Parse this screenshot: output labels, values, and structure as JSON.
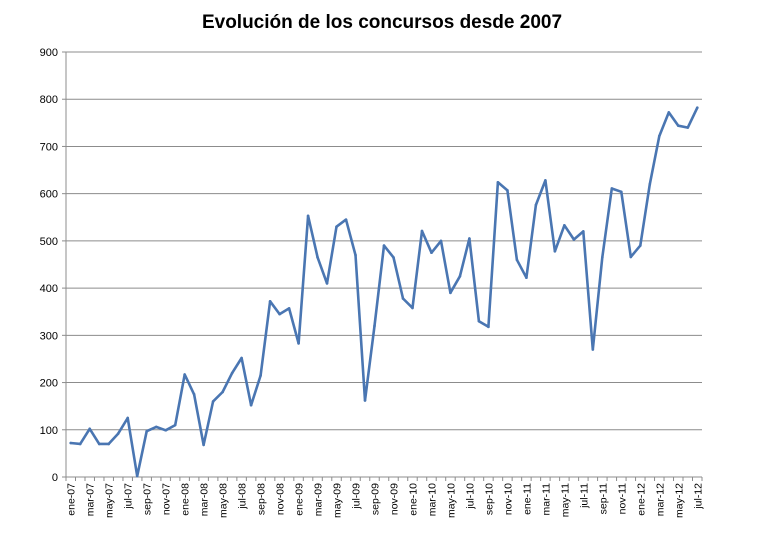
{
  "chart_data": {
    "type": "line",
    "title": "Evolución de los concursos desde 2007",
    "xlabel": "",
    "ylabel": "",
    "ylim": [
      0,
      900
    ],
    "yticks": [
      "0",
      "100",
      "200",
      "300",
      "400",
      "500",
      "600",
      "700",
      "800",
      "900"
    ],
    "grid": true,
    "legend": "none",
    "line_color": "#4a76b2",
    "grid_color": "#8c8c8c",
    "x": [
      "ene-07",
      "feb-07",
      "mar-07",
      "abr-07",
      "may-07",
      "jun-07",
      "jul-07",
      "ago-07",
      "sep-07",
      "oct-07",
      "nov-07",
      "dic-07",
      "ene-08",
      "feb-08",
      "mar-08",
      "abr-08",
      "may-08",
      "jun-08",
      "jul-08",
      "ago-08",
      "sep-08",
      "oct-08",
      "nov-08",
      "dic-08",
      "ene-09",
      "feb-09",
      "mar-09",
      "abr-09",
      "may-09",
      "jun-09",
      "jul-09",
      "ago-09",
      "sep-09",
      "oct-09",
      "nov-09",
      "dic-09",
      "ene-10",
      "feb-10",
      "mar-10",
      "abr-10",
      "may-10",
      "jun-10",
      "jul-10",
      "ago-10",
      "sep-10",
      "oct-10",
      "nov-10",
      "dic-10",
      "ene-11",
      "feb-11",
      "mar-11",
      "abr-11",
      "may-11",
      "jun-11",
      "jul-11",
      "ago-11",
      "sep-11",
      "oct-11",
      "nov-11",
      "dic-11",
      "ene-12",
      "feb-12",
      "mar-12",
      "abr-12",
      "may-12",
      "jun-12",
      "jul-12"
    ],
    "xtick_labels": [
      "ene-07",
      "mar-07",
      "may-07",
      "jul-07",
      "sep-07",
      "nov-07",
      "ene-08",
      "mar-08",
      "may-08",
      "jul-08",
      "sep-08",
      "nov-08",
      "ene-09",
      "mar-09",
      "may-09",
      "jul-09",
      "sep-09",
      "nov-09",
      "ene-10",
      "mar-10",
      "may-10",
      "jul-10",
      "sep-10",
      "nov-10",
      "ene-11",
      "mar-11",
      "may-11",
      "jul-11",
      "sep-11",
      "nov-11",
      "ene-12",
      "mar-12",
      "may-12",
      "jul-12"
    ],
    "series": [
      {
        "values": [
          72,
          70,
          102,
          70,
          70,
          92,
          125,
          2,
          97,
          106,
          99,
          110,
          217,
          175,
          68,
          160,
          180,
          220,
          252,
          152,
          215,
          372,
          345,
          357,
          283,
          553,
          465,
          410,
          530,
          545,
          470,
          162,
          320,
          490,
          465,
          378,
          358,
          521,
          475,
          500,
          390,
          425,
          505,
          330,
          318,
          624,
          607,
          460,
          422,
          576,
          628,
          478,
          533,
          503,
          520,
          270,
          465,
          611,
          604,
          466,
          490,
          620,
          722,
          772,
          744,
          740,
          782
        ]
      }
    ]
  }
}
